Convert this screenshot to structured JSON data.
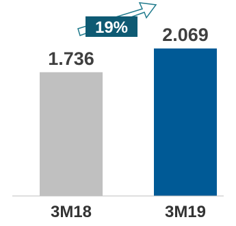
{
  "chart_data": {
    "type": "bar",
    "categories": [
      "3M18",
      "3M19"
    ],
    "values": [
      1.736,
      2.069
    ],
    "value_labels": [
      "1.736",
      "2.069"
    ],
    "colors": [
      "#c0c0c0",
      "#005a96"
    ],
    "growth_badge": {
      "text": "19%",
      "box_color": "#0e5a73",
      "arrow_color": "#1f7a8c"
    },
    "ylim": [
      0,
      2.069
    ],
    "grid": false,
    "legend": "none"
  }
}
